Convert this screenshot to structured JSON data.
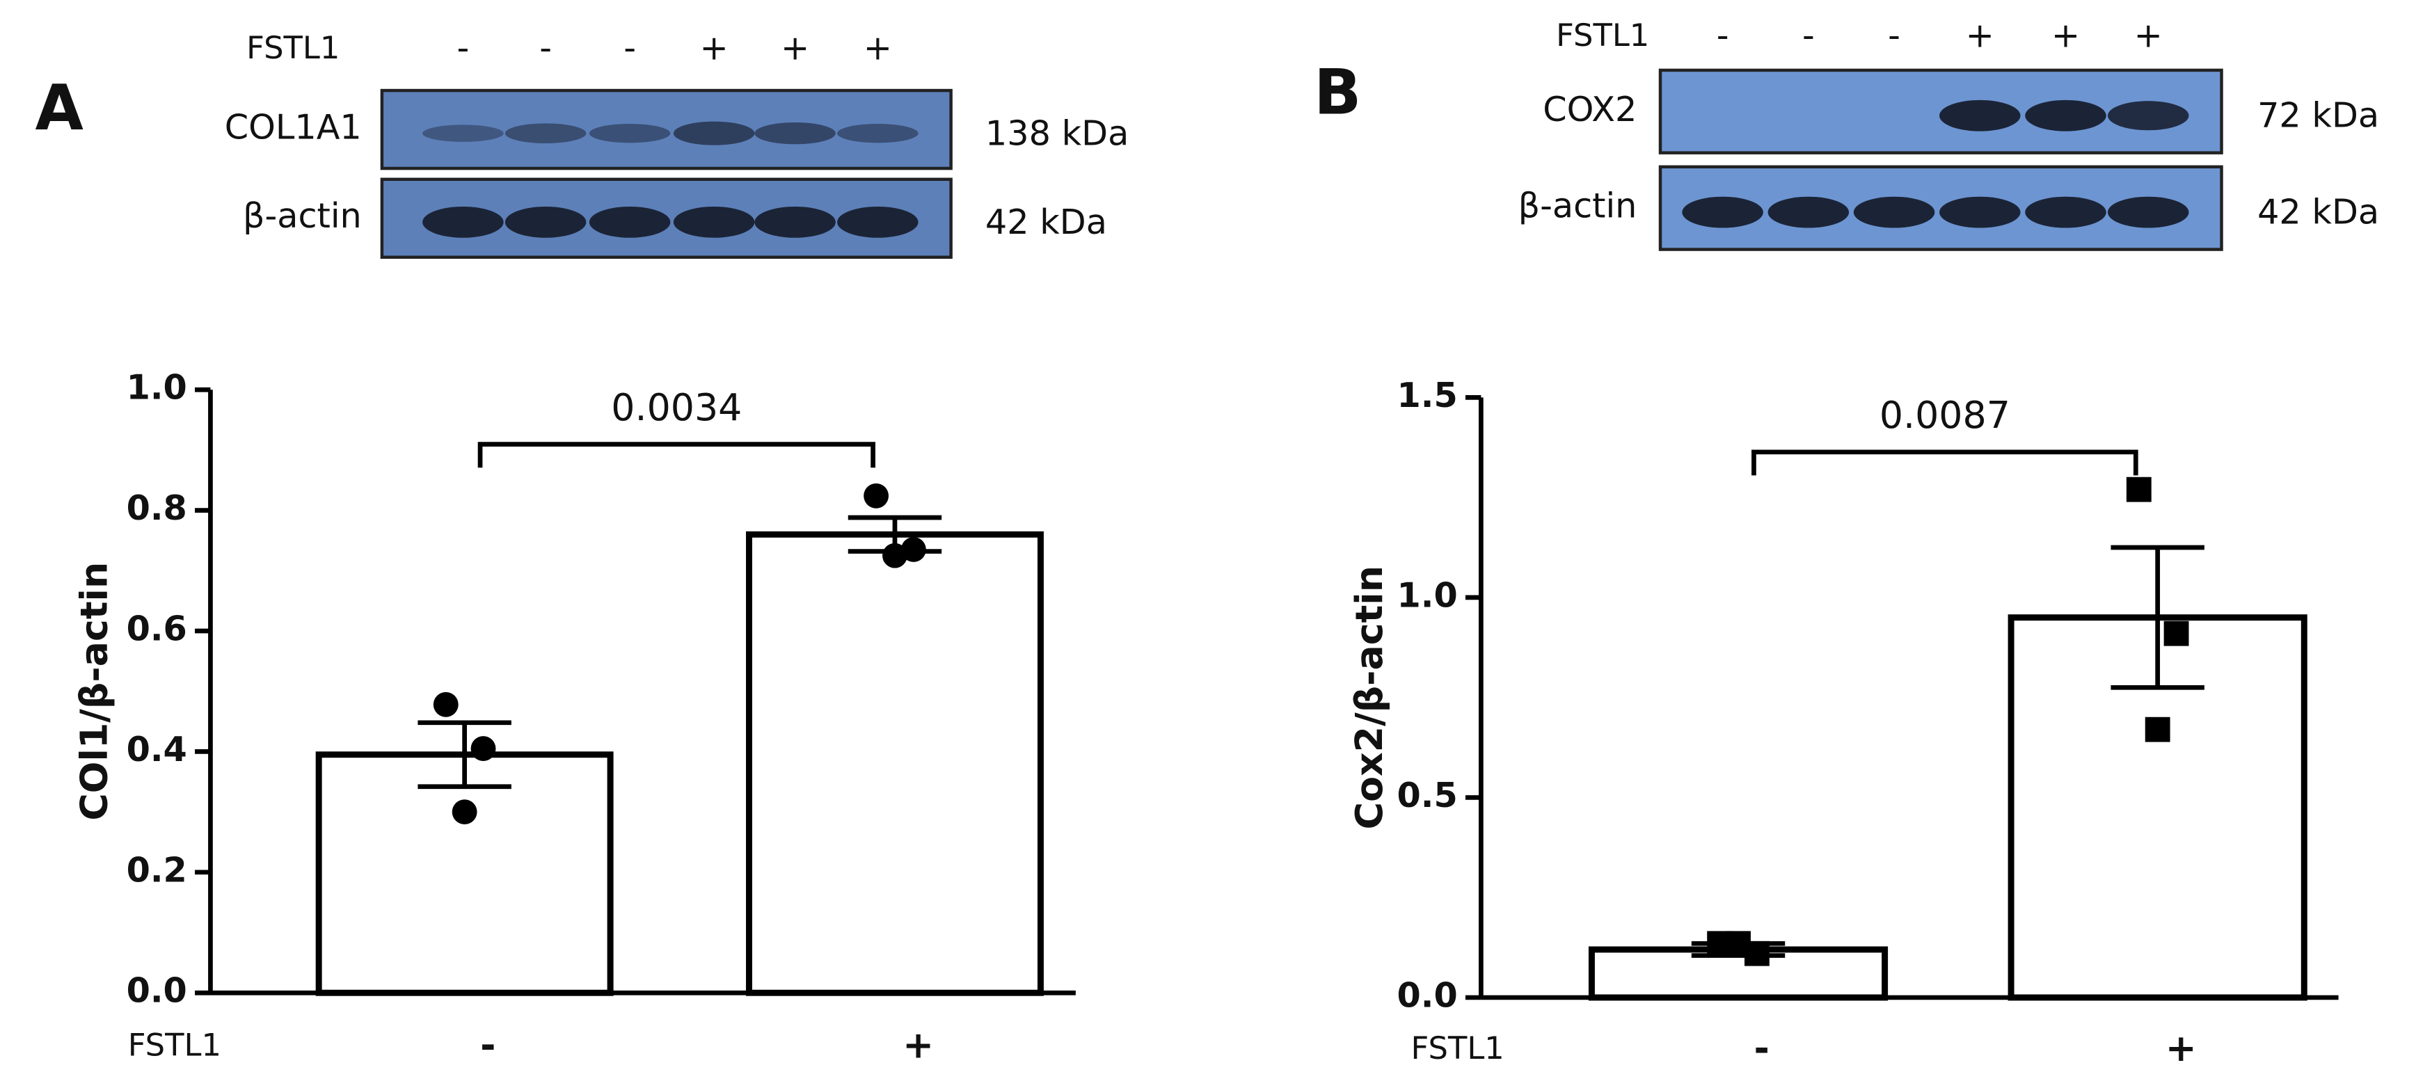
{
  "chart_data": [
    {
      "type": "bar",
      "panel": "A",
      "blot": {
        "treatment_label": "FSTL1",
        "lanes": [
          "-",
          "-",
          "-",
          "+",
          "+",
          "+"
        ],
        "rows": [
          {
            "name": "COL1A1",
            "size": "138 kDa"
          },
          {
            "name": "β-actin",
            "size": "42 kDa"
          }
        ]
      },
      "ylabel": "COl1/β-actin",
      "xlabel": "FSTL1",
      "categories": [
        "-",
        "+"
      ],
      "values": [
        0.395,
        0.76
      ],
      "errors": [
        0.053,
        0.028
      ],
      "points": [
        [
          0.478,
          0.405,
          0.3
        ],
        [
          0.824,
          0.735,
          0.725
        ]
      ],
      "marker": "circle",
      "annotation": "0.0034",
      "color": "#ffffff",
      "ylim": [
        0,
        1.0
      ],
      "yticks": [
        {
          "value": 0,
          "label": "0.0"
        },
        {
          "value": 0.2,
          "label": "0.2"
        },
        {
          "value": 0.4,
          "label": "0.4"
        },
        {
          "value": 0.6,
          "label": "0.6"
        },
        {
          "value": 0.8,
          "label": "0.8"
        },
        {
          "value": 1.0,
          "label": "1.0"
        }
      ]
    },
    {
      "type": "bar",
      "panel": "B",
      "blot": {
        "treatment_label": "FSTL1",
        "lanes": [
          "-",
          "-",
          "-",
          "+",
          "+",
          "+"
        ],
        "rows": [
          {
            "name": "COX2",
            "size": "72 kDa"
          },
          {
            "name": "β-actin",
            "size": "42 kDa"
          }
        ]
      },
      "ylabel": "Cox2/β-actin",
      "xlabel": "FSTL1",
      "categories": [
        "-",
        "+"
      ],
      "values": [
        0.12,
        0.95
      ],
      "errors": [
        0.015,
        0.175
      ],
      "points": [
        [
          0.135,
          0.11,
          0.135
        ],
        [
          1.27,
          0.91,
          0.67
        ]
      ],
      "marker": "square",
      "annotation": "0.0087",
      "color": "#ffffff",
      "ylim": [
        0,
        1.5
      ],
      "yticks": [
        {
          "value": 0,
          "label": "0.0"
        },
        {
          "value": 0.5,
          "label": "0.5"
        },
        {
          "value": 1.0,
          "label": "1.0"
        },
        {
          "value": 1.5,
          "label": "1.5"
        }
      ]
    }
  ]
}
